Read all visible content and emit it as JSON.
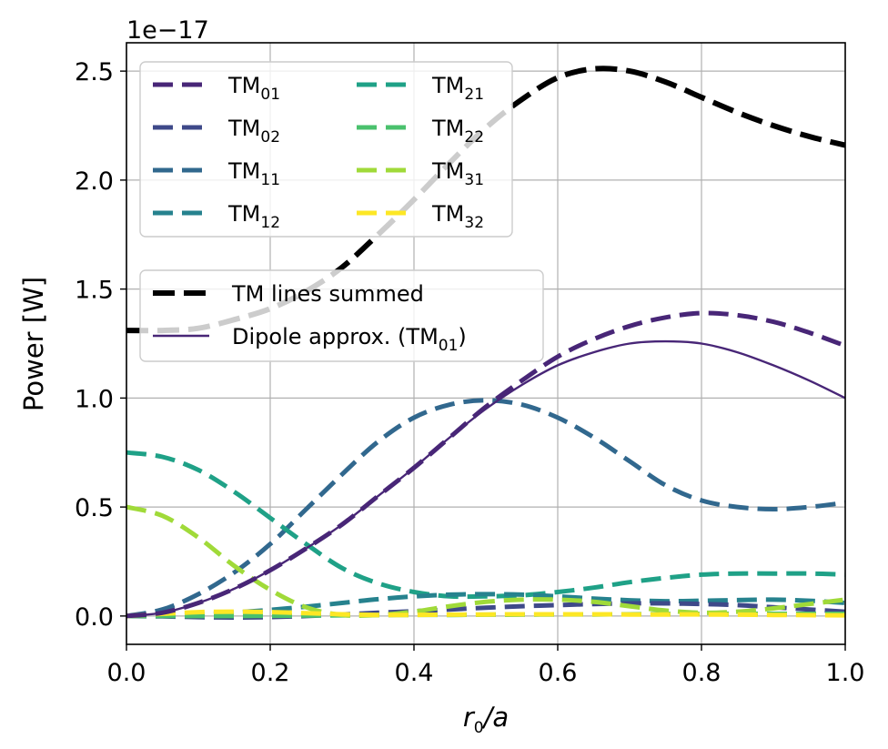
{
  "chart_data": {
    "type": "line",
    "title": "",
    "xlabel_main": "r",
    "xlabel_sub": "0",
    "xlabel_tail": "/a",
    "ylabel": "Power [W]",
    "y_offset_text": "1e−17",
    "xlim": [
      0.0,
      1.0
    ],
    "ylim": [
      -0.13,
      2.63
    ],
    "x_ticks": [
      "0.0",
      "0.2",
      "0.4",
      "0.6",
      "0.8",
      "1.0"
    ],
    "y_ticks": [
      "0.0",
      "0.5",
      "1.0",
      "1.5",
      "2.0",
      "2.5"
    ],
    "grid": true,
    "x": [
      0.0,
      0.05,
      0.1,
      0.15,
      0.2,
      0.25,
      0.3,
      0.35,
      0.4,
      0.45,
      0.5,
      0.55,
      0.6,
      0.65,
      0.7,
      0.75,
      0.8,
      0.85,
      0.9,
      0.95,
      1.0
    ],
    "series": [
      {
        "name": "TM",
        "sub": "01",
        "legend": 1,
        "color": "#482677",
        "style": "dashed",
        "values": [
          0.0,
          0.015,
          0.06,
          0.125,
          0.21,
          0.31,
          0.42,
          0.55,
          0.68,
          0.82,
          0.96,
          1.08,
          1.19,
          1.27,
          1.33,
          1.37,
          1.39,
          1.38,
          1.35,
          1.3,
          1.24
        ]
      },
      {
        "name": "TM",
        "sub": "02",
        "legend": 1,
        "color": "#3e4989",
        "style": "dashed",
        "values": [
          0.0,
          -0.002,
          -0.005,
          -0.007,
          -0.005,
          0.0,
          0.007,
          0.015,
          0.022,
          0.03,
          0.038,
          0.045,
          0.05,
          0.055,
          0.058,
          0.058,
          0.055,
          0.05,
          0.04,
          0.03,
          0.02
        ]
      },
      {
        "name": "TM",
        "sub": "11",
        "legend": 1,
        "color": "#31688e",
        "style": "dashed",
        "values": [
          0.0,
          0.03,
          0.1,
          0.2,
          0.33,
          0.49,
          0.65,
          0.8,
          0.91,
          0.97,
          0.99,
          0.97,
          0.91,
          0.82,
          0.71,
          0.6,
          0.53,
          0.5,
          0.49,
          0.5,
          0.52
        ]
      },
      {
        "name": "TM",
        "sub": "12",
        "legend": 1,
        "color": "#26828e",
        "style": "dashed",
        "values": [
          0.0,
          0.002,
          0.007,
          0.016,
          0.028,
          0.043,
          0.06,
          0.077,
          0.09,
          0.098,
          0.1,
          0.098,
          0.09,
          0.08,
          0.072,
          0.068,
          0.07,
          0.073,
          0.075,
          0.07,
          0.06
        ]
      },
      {
        "name": "TM",
        "sub": "21",
        "legend": 1,
        "color": "#1fa187",
        "style": "dashed",
        "values": [
          0.75,
          0.73,
          0.67,
          0.57,
          0.45,
          0.33,
          0.22,
          0.15,
          0.11,
          0.09,
          0.09,
          0.095,
          0.11,
          0.13,
          0.155,
          0.175,
          0.19,
          0.195,
          0.195,
          0.195,
          0.19
        ]
      },
      {
        "name": "TM",
        "sub": "22",
        "legend": 1,
        "color": "#4ac16d",
        "style": "dashed",
        "values": [
          0.0,
          0.0,
          0.0,
          0.0,
          0.001,
          0.002,
          0.003,
          0.004,
          0.005,
          0.005,
          0.006,
          0.006,
          0.007,
          0.007,
          0.008,
          0.009,
          0.01,
          0.01,
          0.01,
          0.01,
          0.01
        ]
      },
      {
        "name": "TM",
        "sub": "31",
        "legend": 1,
        "color": "#a0da39",
        "style": "dashed",
        "values": [
          0.5,
          0.46,
          0.36,
          0.23,
          0.12,
          0.04,
          0.005,
          0.005,
          0.02,
          0.045,
          0.065,
          0.075,
          0.075,
          0.065,
          0.045,
          0.025,
          0.015,
          0.02,
          0.035,
          0.055,
          0.075
        ]
      },
      {
        "name": "TM",
        "sub": "32",
        "legend": 1,
        "color": "#fde725",
        "style": "dashed",
        "values": [
          0.0,
          0.01,
          0.018,
          0.02,
          0.018,
          0.013,
          0.008,
          0.005,
          0.005,
          0.006,
          0.007,
          0.008,
          0.008,
          0.008,
          0.007,
          0.007,
          0.007,
          0.006,
          0.005,
          0.004,
          0.003
        ]
      },
      {
        "name": "TM lines summed",
        "sub": "",
        "legend": 2,
        "color": "#000000",
        "style": "dashed-thick",
        "values": [
          1.31,
          1.31,
          1.32,
          1.36,
          1.41,
          1.49,
          1.6,
          1.75,
          1.91,
          2.08,
          2.24,
          2.37,
          2.47,
          2.51,
          2.5,
          2.45,
          2.38,
          2.31,
          2.25,
          2.2,
          2.16
        ]
      },
      {
        "name": "Dipole approx. (TM",
        "sub": "01",
        "tail": ")",
        "legend": 2,
        "color": "#482677",
        "style": "solid",
        "values": [
          0.0,
          0.015,
          0.06,
          0.125,
          0.21,
          0.31,
          0.42,
          0.55,
          0.68,
          0.82,
          0.95,
          1.06,
          1.15,
          1.21,
          1.25,
          1.26,
          1.25,
          1.21,
          1.15,
          1.08,
          1.0
        ]
      }
    ],
    "legend_placement": "upper-left"
  }
}
